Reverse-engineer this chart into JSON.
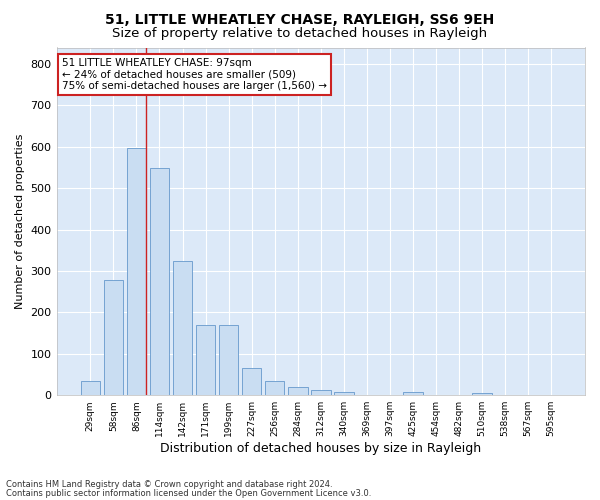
{
  "title1": "51, LITTLE WHEATLEY CHASE, RAYLEIGH, SS6 9EH",
  "title2": "Size of property relative to detached houses in Rayleigh",
  "xlabel": "Distribution of detached houses by size in Rayleigh",
  "ylabel": "Number of detached properties",
  "categories": [
    "29sqm",
    "58sqm",
    "86sqm",
    "114sqm",
    "142sqm",
    "171sqm",
    "199sqm",
    "227sqm",
    "256sqm",
    "284sqm",
    "312sqm",
    "340sqm",
    "369sqm",
    "397sqm",
    "425sqm",
    "454sqm",
    "482sqm",
    "510sqm",
    "538sqm",
    "567sqm",
    "595sqm"
  ],
  "values": [
    35,
    278,
    597,
    549,
    325,
    170,
    170,
    65,
    35,
    20,
    12,
    8,
    0,
    0,
    8,
    0,
    0,
    5,
    0,
    0,
    0
  ],
  "bar_color": "#c9ddf2",
  "bar_edge_color": "#6699cc",
  "vline_color": "#cc2222",
  "annotation_text": "51 LITTLE WHEATLEY CHASE: 97sqm\n← 24% of detached houses are smaller (509)\n75% of semi-detached houses are larger (1,560) →",
  "annotation_box_color": "#ffffff",
  "annotation_box_edge": "#cc2222",
  "footnote1": "Contains HM Land Registry data © Crown copyright and database right 2024.",
  "footnote2": "Contains public sector information licensed under the Open Government Licence v3.0.",
  "ylim": [
    0,
    840
  ],
  "yticks": [
    0,
    100,
    200,
    300,
    400,
    500,
    600,
    700,
    800
  ],
  "background_color": "#dce9f8",
  "grid_color": "#ffffff",
  "title1_fontsize": 10,
  "title2_fontsize": 9.5
}
